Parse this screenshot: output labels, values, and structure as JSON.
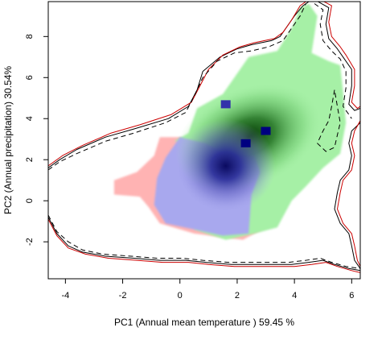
{
  "chart_data": {
    "type": "heatmap",
    "title": "",
    "xlabel": "PC1 (Annual mean temperature ) 59.45 %",
    "ylabel": "PC2 (Annual precipitation) 30.54%",
    "xlim": [
      -4.6,
      6.3
    ],
    "ylim": [
      -3.8,
      9.7
    ],
    "x_ticks": [
      -4,
      -2,
      0,
      2,
      4,
      6
    ],
    "y_ticks": [
      -2,
      0,
      2,
      4,
      6,
      8
    ],
    "grid": false,
    "legend": "none",
    "layers": [
      {
        "color": "#ffb3b3",
        "outline": [
          [
            0.0,
            3.1
          ],
          [
            -0.7,
            3.1
          ],
          [
            -0.9,
            2.2
          ],
          [
            -1.5,
            1.4
          ],
          [
            -2.3,
            1.0
          ],
          [
            -2.3,
            0.3
          ],
          [
            -1.4,
            0.2
          ],
          [
            -1.1,
            -0.3
          ],
          [
            -0.7,
            -1.1
          ],
          [
            0.5,
            -1.6
          ],
          [
            2.2,
            -1.9
          ],
          [
            2.6,
            -1.6
          ],
          [
            3.0,
            -1.3
          ],
          [
            1.6,
            -0.3
          ],
          [
            0.3,
            2.9
          ]
        ]
      },
      {
        "color": "#a6f0a6",
        "outline": [
          [
            -0.2,
            2.9
          ],
          [
            0.3,
            3.3
          ],
          [
            0.6,
            4.5
          ],
          [
            1.5,
            5.2
          ],
          [
            2.0,
            6.2
          ],
          [
            2.4,
            7.0
          ],
          [
            3.4,
            7.3
          ],
          [
            3.9,
            8.4
          ],
          [
            4.2,
            9.4
          ],
          [
            4.5,
            9.6
          ],
          [
            4.8,
            9.0
          ],
          [
            4.6,
            7.2
          ],
          [
            5.2,
            6.8
          ],
          [
            5.6,
            6.6
          ],
          [
            5.7,
            5.3
          ],
          [
            5.8,
            3.8
          ],
          [
            5.6,
            2.3
          ],
          [
            5.0,
            1.6
          ],
          [
            4.4,
            0.7
          ],
          [
            3.9,
            0.0
          ],
          [
            3.4,
            -1.3
          ],
          [
            2.6,
            -1.6
          ],
          [
            1.6,
            -1.9
          ],
          [
            0.5,
            -1.4
          ],
          [
            1.2,
            2.2
          ],
          [
            0.5,
            2.8
          ]
        ]
      },
      {
        "color": "#a8a8ee",
        "outline": [
          [
            0.0,
            3.1
          ],
          [
            0.9,
            2.8
          ],
          [
            1.7,
            2.2
          ],
          [
            2.6,
            2.2
          ],
          [
            2.8,
            1.4
          ],
          [
            2.5,
            0.3
          ],
          [
            2.4,
            -1.6
          ],
          [
            1.5,
            -1.7
          ],
          [
            0.5,
            -1.4
          ],
          [
            -0.5,
            -1.1
          ],
          [
            -0.9,
            -0.2
          ],
          [
            -0.8,
            1.1
          ],
          [
            -0.5,
            2.1
          ]
        ]
      }
    ],
    "density_peaks": [
      {
        "color": "#003300",
        "x": 2.4,
        "y": 3.1
      },
      {
        "color": "#1a1a8c",
        "x": 1.6,
        "y": 1.7
      }
    ],
    "small_squares": [
      {
        "color": "#3333aa",
        "x": 1.6,
        "y": 4.7
      },
      {
        "color": "#000080",
        "x": 3.0,
        "y": 3.4
      },
      {
        "color": "#000080",
        "x": 2.3,
        "y": 2.8
      }
    ],
    "contours": [
      {
        "color": "#000000",
        "dash": "none",
        "points": [
          [
            -4.6,
            1.6
          ],
          [
            -4.2,
            2.0
          ],
          [
            -3.6,
            2.5
          ],
          [
            -2.6,
            3.1
          ],
          [
            -1.6,
            3.5
          ],
          [
            -0.4,
            4.0
          ],
          [
            0.3,
            4.6
          ],
          [
            0.6,
            5.4
          ],
          [
            0.8,
            6.3
          ],
          [
            1.4,
            7.0
          ],
          [
            2.0,
            7.4
          ],
          [
            2.5,
            7.6
          ],
          [
            3.2,
            7.8
          ],
          [
            3.5,
            8.0
          ],
          [
            3.7,
            8.4
          ],
          [
            4.0,
            9.0
          ],
          [
            4.3,
            9.5
          ],
          [
            4.6,
            9.8
          ]
        ]
      },
      {
        "color": "#cc0000",
        "dash": "none",
        "points": [
          [
            -4.6,
            1.7
          ],
          [
            -4.1,
            2.2
          ],
          [
            -3.4,
            2.7
          ],
          [
            -2.4,
            3.3
          ],
          [
            -1.4,
            3.7
          ],
          [
            -0.3,
            4.2
          ],
          [
            0.4,
            4.8
          ],
          [
            0.7,
            5.6
          ],
          [
            1.0,
            6.4
          ],
          [
            1.5,
            7.1
          ],
          [
            2.1,
            7.5
          ],
          [
            2.6,
            7.7
          ],
          [
            3.3,
            7.9
          ],
          [
            3.6,
            8.2
          ],
          [
            3.9,
            8.8
          ],
          [
            4.2,
            9.5
          ],
          [
            4.5,
            9.8
          ]
        ]
      },
      {
        "color": "#000000",
        "dash": "6 4",
        "points": [
          [
            -4.6,
            1.5
          ],
          [
            -4.2,
            1.9
          ],
          [
            -3.6,
            2.3
          ],
          [
            -2.6,
            2.9
          ],
          [
            -1.6,
            3.3
          ],
          [
            -0.5,
            3.8
          ],
          [
            0.2,
            4.3
          ],
          [
            0.5,
            5.1
          ],
          [
            0.8,
            6.0
          ],
          [
            1.3,
            6.8
          ],
          [
            1.9,
            7.2
          ],
          [
            2.5,
            7.3
          ],
          [
            3.1,
            7.5
          ],
          [
            3.6,
            7.8
          ],
          [
            3.9,
            8.4
          ],
          [
            4.2,
            9.0
          ],
          [
            4.4,
            9.6
          ]
        ]
      },
      {
        "color": "#000000",
        "dash": "none",
        "points": [
          [
            4.7,
            9.8
          ],
          [
            5.2,
            9.4
          ],
          [
            5.1,
            8.6
          ],
          [
            5.2,
            7.9
          ],
          [
            5.5,
            7.4
          ],
          [
            5.7,
            7.0
          ],
          [
            6.0,
            6.4
          ],
          [
            6.0,
            5.6
          ],
          [
            5.9,
            4.7
          ],
          [
            6.1,
            4.4
          ],
          [
            6.3,
            4.5
          ]
        ]
      },
      {
        "color": "#cc0000",
        "dash": "none",
        "points": [
          [
            4.9,
            9.8
          ],
          [
            5.3,
            9.5
          ],
          [
            5.2,
            8.7
          ],
          [
            5.3,
            8.0
          ],
          [
            5.6,
            7.5
          ],
          [
            5.8,
            7.1
          ],
          [
            6.1,
            6.4
          ],
          [
            6.1,
            5.6
          ],
          [
            6.0,
            4.8
          ],
          [
            6.2,
            4.5
          ],
          [
            6.3,
            4.6
          ]
        ]
      },
      {
        "color": "#000000",
        "dash": "6 4",
        "points": [
          [
            4.7,
            9.6
          ],
          [
            5.0,
            9.3
          ],
          [
            4.9,
            8.6
          ],
          [
            5.0,
            7.8
          ],
          [
            5.3,
            7.3
          ],
          [
            5.6,
            6.9
          ],
          [
            5.8,
            6.3
          ],
          [
            5.8,
            5.5
          ],
          [
            5.7,
            4.6
          ],
          [
            5.9,
            4.2
          ],
          [
            6.0,
            4.0
          ]
        ]
      },
      {
        "color": "#000000",
        "dash": "none",
        "points": [
          [
            6.3,
            3.8
          ],
          [
            6.0,
            3.4
          ],
          [
            5.9,
            2.8
          ],
          [
            6.0,
            2.2
          ],
          [
            5.9,
            1.5
          ],
          [
            5.6,
            1.0
          ],
          [
            5.5,
            0.4
          ],
          [
            5.4,
            -0.4
          ],
          [
            5.6,
            -1.1
          ],
          [
            5.9,
            -1.6
          ],
          [
            6.0,
            -2.2
          ],
          [
            6.1,
            -2.9
          ],
          [
            6.3,
            -3.3
          ]
        ]
      },
      {
        "color": "#cc0000",
        "dash": "none",
        "points": [
          [
            6.3,
            3.9
          ],
          [
            6.1,
            3.4
          ],
          [
            6.0,
            2.8
          ],
          [
            6.1,
            2.2
          ],
          [
            6.0,
            1.5
          ],
          [
            5.7,
            1.0
          ],
          [
            5.6,
            0.4
          ],
          [
            5.5,
            -0.4
          ],
          [
            5.7,
            -1.1
          ],
          [
            6.0,
            -1.6
          ],
          [
            6.1,
            -2.2
          ],
          [
            6.2,
            -2.9
          ],
          [
            6.3,
            -3.2
          ]
        ]
      },
      {
        "color": "#000000",
        "dash": "6 4",
        "points": [
          [
            5.4,
            5.4
          ],
          [
            5.3,
            4.6
          ],
          [
            5.2,
            3.9
          ],
          [
            5.0,
            3.4
          ],
          [
            4.8,
            2.8
          ],
          [
            5.1,
            2.4
          ],
          [
            5.4,
            2.6
          ],
          [
            5.5,
            3.2
          ],
          [
            5.6,
            3.8
          ],
          [
            5.5,
            4.6
          ],
          [
            5.4,
            5.4
          ]
        ]
      },
      {
        "color": "#000000",
        "dash": "none",
        "points": [
          [
            -4.6,
            -0.8
          ],
          [
            -4.3,
            -1.6
          ],
          [
            -3.9,
            -2.2
          ],
          [
            -3.4,
            -2.5
          ],
          [
            -2.6,
            -2.7
          ],
          [
            -1.6,
            -2.8
          ],
          [
            -0.7,
            -2.9
          ],
          [
            0.2,
            -2.9
          ],
          [
            0.9,
            -3.0
          ],
          [
            1.8,
            -3.1
          ],
          [
            2.5,
            -3.1
          ],
          [
            3.2,
            -3.1
          ],
          [
            3.9,
            -3.1
          ],
          [
            4.5,
            -3.0
          ],
          [
            5.0,
            -2.9
          ],
          [
            5.4,
            -3.1
          ],
          [
            5.9,
            -3.3
          ],
          [
            6.3,
            -3.4
          ]
        ]
      },
      {
        "color": "#cc0000",
        "dash": "none",
        "points": [
          [
            -4.6,
            -0.9
          ],
          [
            -4.3,
            -1.7
          ],
          [
            -3.9,
            -2.3
          ],
          [
            -3.3,
            -2.6
          ],
          [
            -2.5,
            -2.8
          ],
          [
            -1.5,
            -2.9
          ],
          [
            -0.6,
            -3.0
          ],
          [
            0.3,
            -3.0
          ],
          [
            1.0,
            -3.1
          ],
          [
            1.9,
            -3.2
          ],
          [
            2.6,
            -3.2
          ],
          [
            3.3,
            -3.2
          ],
          [
            4.0,
            -3.2
          ],
          [
            4.6,
            -3.1
          ],
          [
            5.1,
            -3.0
          ],
          [
            5.5,
            -3.2
          ],
          [
            6.0,
            -3.4
          ],
          [
            6.3,
            -3.5
          ]
        ]
      },
      {
        "color": "#000000",
        "dash": "6 4",
        "points": [
          [
            -4.6,
            -0.7
          ],
          [
            -4.3,
            -1.5
          ],
          [
            -3.9,
            -2.0
          ],
          [
            -3.4,
            -2.4
          ],
          [
            -2.7,
            -2.6
          ],
          [
            -1.7,
            -2.7
          ],
          [
            -0.8,
            -2.8
          ],
          [
            0.1,
            -2.8
          ],
          [
            0.8,
            -2.9
          ],
          [
            1.7,
            -3.0
          ],
          [
            2.4,
            -3.0
          ],
          [
            3.1,
            -3.0
          ],
          [
            3.8,
            -3.0
          ],
          [
            4.4,
            -2.9
          ],
          [
            4.9,
            -2.8
          ],
          [
            5.3,
            -3.0
          ],
          [
            5.8,
            -3.2
          ],
          [
            6.3,
            -3.3
          ]
        ]
      }
    ]
  }
}
